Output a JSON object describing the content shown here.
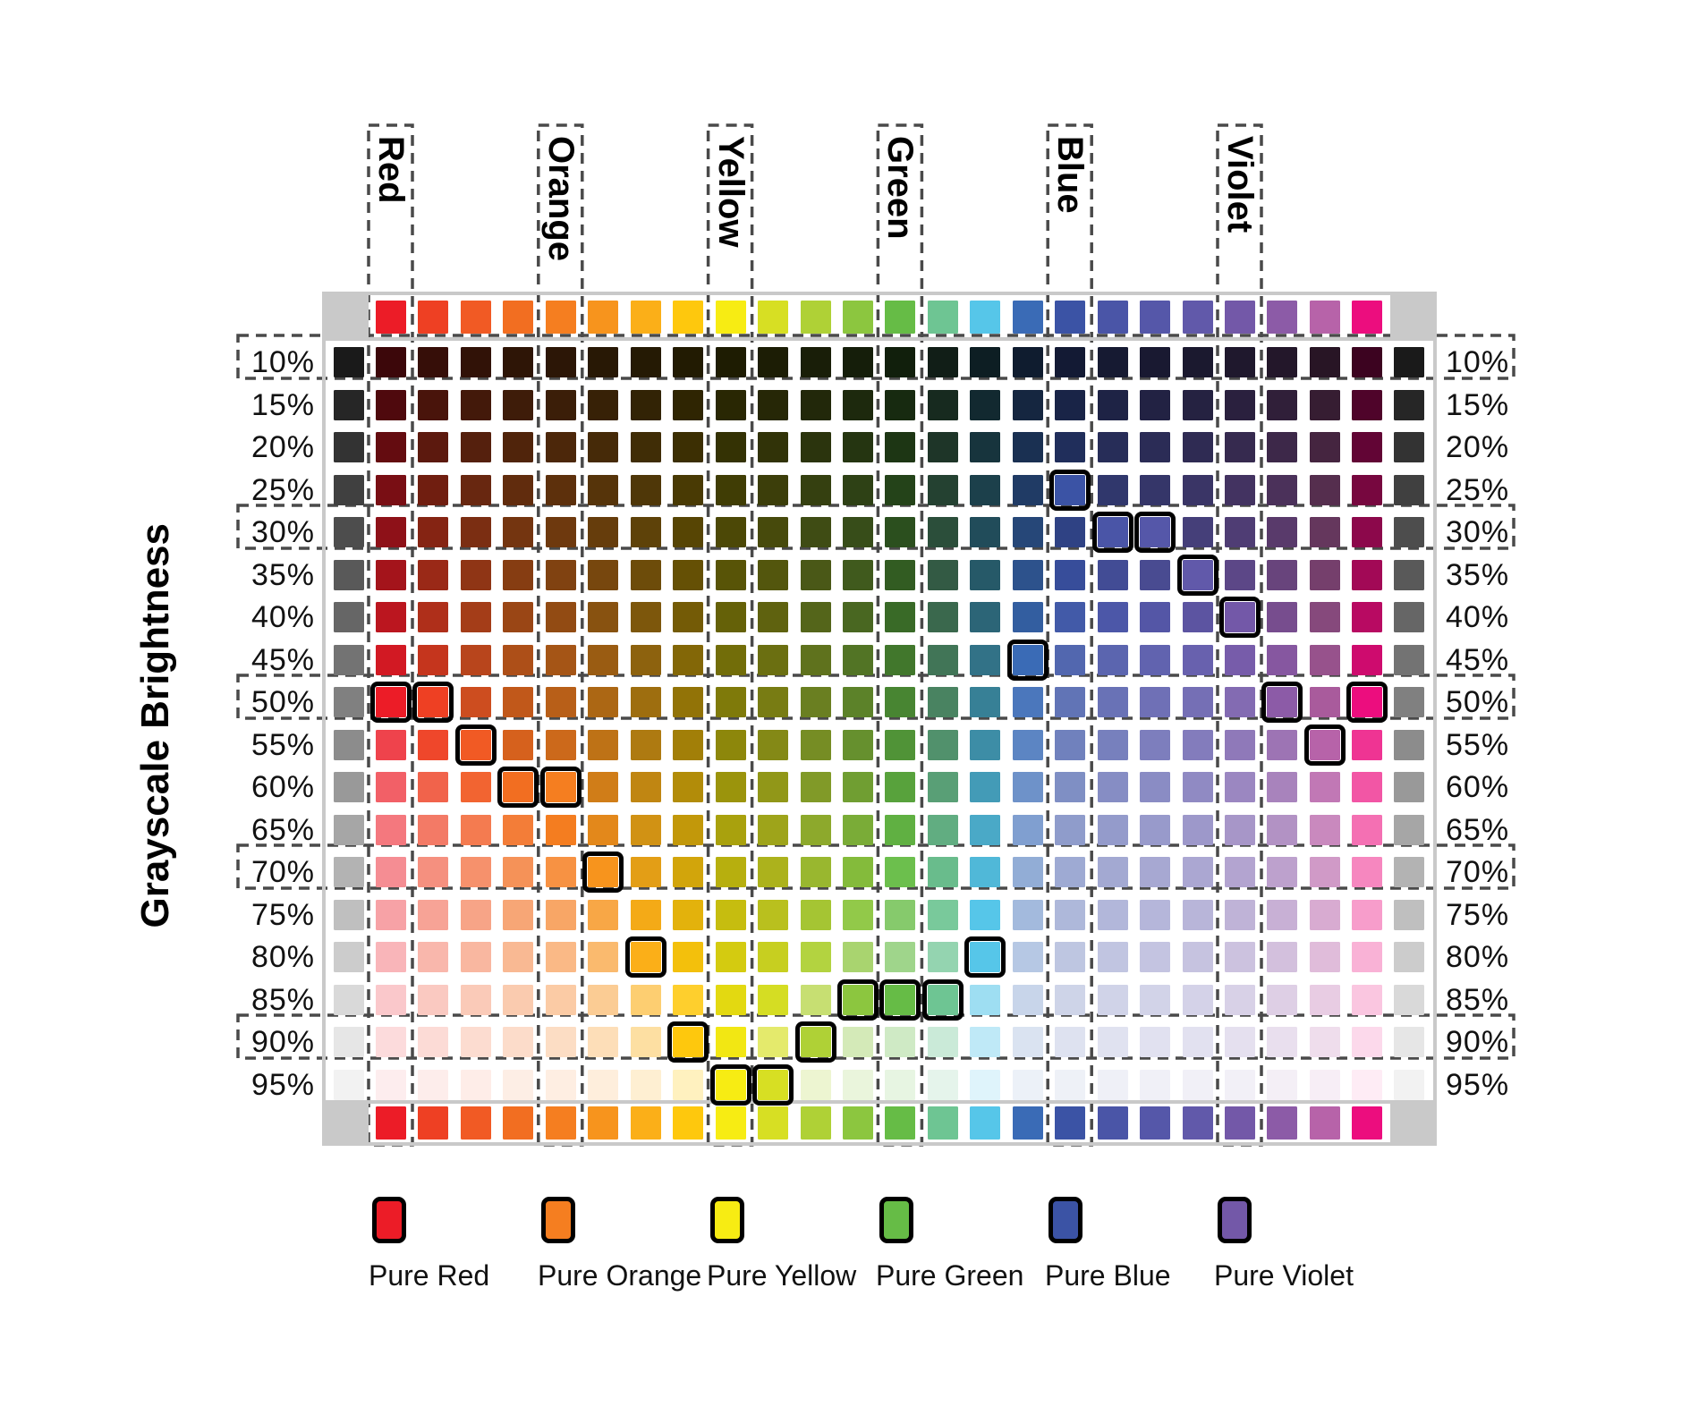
{
  "chart_data": {
    "type": "heatmap",
    "y_axis_title": "Grayscale Brightness",
    "columns": {
      "count": 24,
      "pure_hues": [
        "#EC1C27",
        "#EE4023",
        "#F15A24",
        "#F26E21",
        "#F57E20",
        "#F7941D",
        "#FBAF18",
        "#FEC80D",
        "#F7EC13",
        "#D7DF23",
        "#AFD136",
        "#8CC63F",
        "#66BC46",
        "#6EC593",
        "#56C6E9",
        "#3A6BB6",
        "#3B53A5",
        "#4A55A7",
        "#5557A9",
        "#6159AA",
        "#7358A8",
        "#8C5BA7",
        "#B763A9",
        "#EC0D7E"
      ],
      "labeled": [
        {
          "column": 1,
          "label": "Red"
        },
        {
          "column": 5,
          "label": "Orange"
        },
        {
          "column": 9,
          "label": "Yellow"
        },
        {
          "column": 13,
          "label": "Green"
        },
        {
          "column": 17,
          "label": "Blue"
        },
        {
          "column": 21,
          "label": "Violet"
        }
      ]
    },
    "rows": {
      "percents": [
        10,
        15,
        20,
        25,
        30,
        35,
        40,
        45,
        50,
        55,
        60,
        65,
        70,
        75,
        80,
        85,
        90,
        95
      ],
      "percent_labels": [
        "10%",
        "15%",
        "20%",
        "25%",
        "30%",
        "35%",
        "40%",
        "45%",
        "50%",
        "55%",
        "60%",
        "65%",
        "70%",
        "75%",
        "80%",
        "85%",
        "90%",
        "95%"
      ],
      "boxed_percents": [
        10,
        30,
        50,
        70,
        90
      ],
      "label_sides": [
        "left",
        "right"
      ]
    },
    "pure_hue_strips": [
      "top",
      "bottom"
    ],
    "grayscale_strips": [
      "left",
      "right"
    ],
    "highlights": [
      {
        "percent": 25,
        "column": 17
      },
      {
        "percent": 30,
        "column": 18
      },
      {
        "percent": 30,
        "column": 19
      },
      {
        "percent": 35,
        "column": 20
      },
      {
        "percent": 40,
        "column": 21
      },
      {
        "percent": 45,
        "column": 16
      },
      {
        "percent": 50,
        "column": 1
      },
      {
        "percent": 50,
        "column": 2
      },
      {
        "percent": 50,
        "column": 22
      },
      {
        "percent": 50,
        "column": 24
      },
      {
        "percent": 55,
        "column": 3
      },
      {
        "percent": 55,
        "column": 23
      },
      {
        "percent": 60,
        "column": 4
      },
      {
        "percent": 60,
        "column": 5
      },
      {
        "percent": 70,
        "column": 6
      },
      {
        "percent": 80,
        "column": 7
      },
      {
        "percent": 80,
        "column": 15
      },
      {
        "percent": 85,
        "column": 12
      },
      {
        "percent": 85,
        "column": 13
      },
      {
        "percent": 85,
        "column": 14
      },
      {
        "percent": 90,
        "column": 8
      },
      {
        "percent": 90,
        "column": 11
      },
      {
        "percent": 95,
        "column": 9
      },
      {
        "percent": 95,
        "column": 10
      }
    ],
    "legend": [
      {
        "label": "Pure Red",
        "color": "#EC1C27"
      },
      {
        "label": "Pure Orange",
        "color": "#F57E20"
      },
      {
        "label": "Pure Yellow",
        "color": "#F7EC13"
      },
      {
        "label": "Pure Green",
        "color": "#66BC46"
      },
      {
        "label": "Pure Blue",
        "color": "#3B53A5"
      },
      {
        "label": "Pure Violet",
        "color": "#7358A8"
      }
    ],
    "colors": {
      "frame_gray": "#c9c9c9",
      "dash_gray": "#4a4a4a",
      "highlight_border": "#000000",
      "background": "#ffffff",
      "text": "#000000"
    }
  }
}
